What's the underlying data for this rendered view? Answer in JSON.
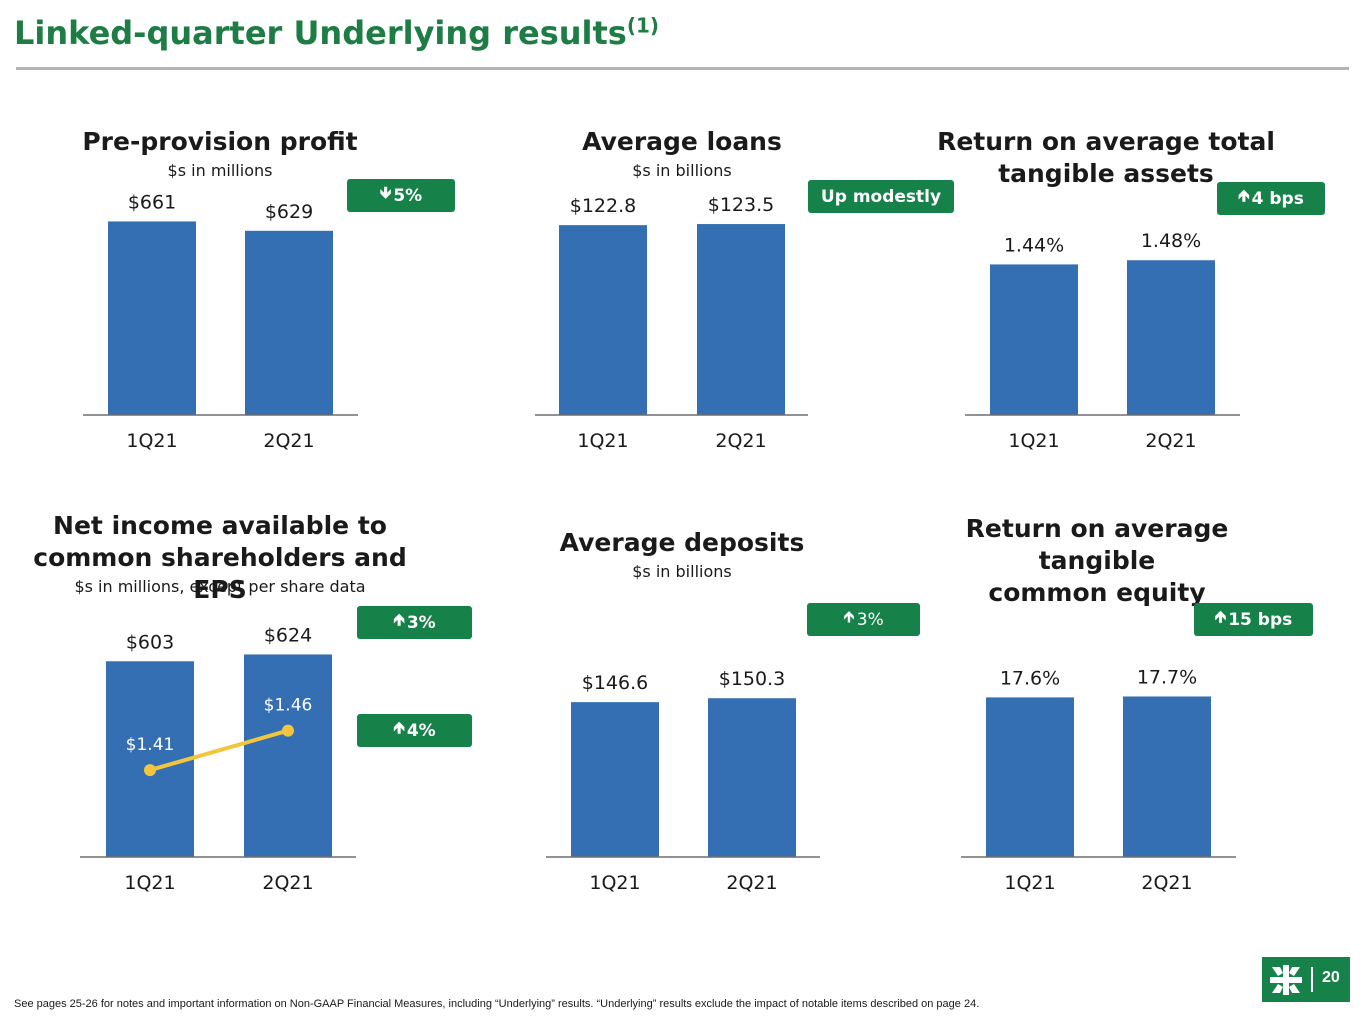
{
  "page": {
    "title": "Linked-quarter Underlying results",
    "title_sup": "(1)",
    "footnote": "See pages 25-26 for notes and important information on Non-GAAP Financial Measures, including “Underlying” results. “Underlying” results exclude the impact of notable items described on page 24.",
    "page_number": "20"
  },
  "colors": {
    "accent": "#1e7d45",
    "badge": "#16824a",
    "bar": "#356fb3",
    "eps_line": "#f2c53d",
    "rule": "#b4b4b4"
  },
  "badges": {
    "ppp": {
      "arrow": "🡻",
      "text": "5%"
    },
    "loans": {
      "arrow": "",
      "text": "Up modestly"
    },
    "rotta": {
      "arrow": "🡹",
      "text": "4 bps"
    },
    "ni": {
      "arrow": "🡹",
      "text": "3%"
    },
    "eps": {
      "arrow": "🡹",
      "text": "4%"
    },
    "deposits": {
      "arrow": "🡹",
      "text": "3%"
    },
    "rotce": {
      "arrow": "🡹",
      "text": "15 bps"
    }
  },
  "chart_data": [
    {
      "type": "bar",
      "title": "Pre-provision profit",
      "subtitle": "$s in millions",
      "categories": [
        "1Q21",
        "2Q21"
      ],
      "values": [
        661,
        629
      ],
      "labels": [
        "$661",
        "$629"
      ],
      "ylim": [
        0,
        700
      ]
    },
    {
      "type": "bar",
      "title": "Average loans",
      "subtitle": "$s in billions",
      "categories": [
        "1Q21",
        "2Q21"
      ],
      "values": [
        122.8,
        123.5
      ],
      "labels": [
        "$122.8",
        "$123.5"
      ],
      "ylim": [
        0,
        130
      ]
    },
    {
      "type": "bar",
      "title": "Return on average total\ntangible assets",
      "subtitle": "",
      "categories": [
        "1Q21",
        "2Q21"
      ],
      "values": [
        1.44,
        1.48
      ],
      "labels": [
        "1.44%",
        "1.48%"
      ],
      "ylim": [
        0,
        1.75
      ]
    },
    {
      "type": "bar",
      "title": "Net income available to\ncommon shareholders and EPS",
      "subtitle": "$s in millions, except per share data",
      "categories": [
        "1Q21",
        "2Q21"
      ],
      "values": [
        603,
        624
      ],
      "labels": [
        "$603",
        "$624"
      ],
      "ylim": [
        0,
        650
      ],
      "line_series": {
        "values": [
          1.41,
          1.46
        ],
        "labels": [
          "$1.41",
          "$1.46"
        ]
      }
    },
    {
      "type": "bar",
      "title": "Average deposits",
      "subtitle": "$s in billions",
      "categories": [
        "1Q21",
        "2Q21"
      ],
      "values": [
        146.6,
        150.3
      ],
      "labels": [
        "$146.6",
        "$150.3"
      ],
      "ylim": [
        0,
        195
      ]
    },
    {
      "type": "bar",
      "title": "Return on average tangible\ncommon equity",
      "subtitle": "",
      "categories": [
        "1Q21",
        "2Q21"
      ],
      "values": [
        17.6,
        17.7
      ],
      "labels": [
        "17.6%",
        "17.7%"
      ],
      "ylim": [
        0,
        20.4
      ]
    }
  ]
}
